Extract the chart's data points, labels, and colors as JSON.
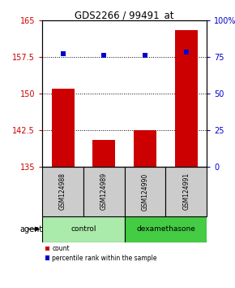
{
  "title": "GDS2266 / 99491_at",
  "samples": [
    "GSM124988",
    "GSM124989",
    "GSM124990",
    "GSM124991"
  ],
  "bar_values": [
    151.0,
    140.5,
    142.5,
    163.0
  ],
  "percentile_values": [
    77.0,
    76.0,
    76.0,
    78.0
  ],
  "bar_color": "#cc0000",
  "percentile_color": "#0000cc",
  "ylim_left": [
    135,
    165
  ],
  "ylim_right": [
    0,
    100
  ],
  "yticks_left": [
    135,
    142.5,
    150,
    157.5,
    165
  ],
  "yticks_right": [
    0,
    25,
    50,
    75,
    100
  ],
  "ytick_labels_right": [
    "0",
    "25",
    "50",
    "75",
    "100%"
  ],
  "groups": [
    {
      "label": "control",
      "samples": [
        0,
        1
      ],
      "color": "#aaeaaa"
    },
    {
      "label": "dexamethasone",
      "samples": [
        2,
        3
      ],
      "color": "#44cc44"
    }
  ],
  "legend_items": [
    {
      "label": "count",
      "color": "#cc0000"
    },
    {
      "label": "percentile rank within the sample",
      "color": "#0000cc"
    }
  ],
  "agent_label": "agent",
  "bar_width": 0.55,
  "grid_color": "#000000",
  "background_color": "#ffffff",
  "sample_bg_color": "#cccccc",
  "bar_base": 135
}
